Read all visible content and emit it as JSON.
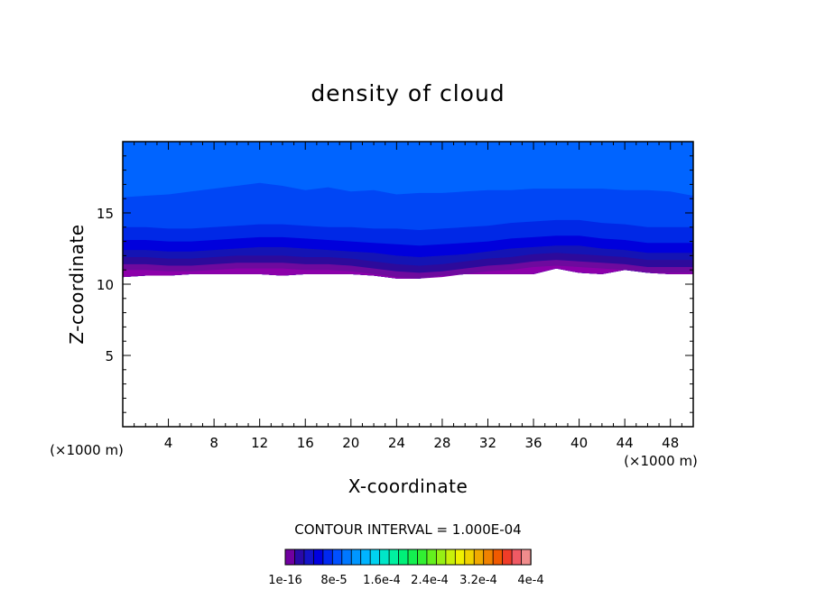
{
  "chart_data": {
    "type": "contour",
    "title": "density of cloud",
    "xlabel": "X-coordinate",
    "ylabel": "Z-coordinate",
    "x_unit": "(×1000 m)",
    "y_unit": "(×1000 m)",
    "xlim": [
      0,
      50
    ],
    "ylim": [
      0,
      20
    ],
    "x_ticks": [
      4,
      8,
      12,
      16,
      20,
      24,
      28,
      32,
      36,
      40,
      44,
      48
    ],
    "y_ticks": [
      5,
      10,
      15
    ],
    "contour_interval": "CONTOUR INTERVAL = 1.000E-04",
    "colorbar_labels": [
      "1e-16",
      "8e-5",
      "1.6e-4",
      "2.4e-4",
      "3.2e-4",
      "4e-4"
    ],
    "colorbar_colors": [
      "#7000a0",
      "#2a0aa8",
      "#1414c8",
      "#0000e0",
      "#0028f0",
      "#0050ff",
      "#0078ff",
      "#0096ff",
      "#00b4ff",
      "#00d2f0",
      "#00e6c8",
      "#00f0a0",
      "#00f078",
      "#14f050",
      "#32f032",
      "#64f01e",
      "#96f014",
      "#c8f00a",
      "#f0f000",
      "#f0d200",
      "#f0aa00",
      "#f08200",
      "#f05a00",
      "#f03c28",
      "#f05a64",
      "#f08c8c"
    ],
    "bands": [
      {
        "color": "#0064ff",
        "top": [
          20,
          20,
          20,
          20,
          20,
          20,
          20,
          20,
          20,
          20,
          20,
          20,
          20,
          20,
          20,
          20,
          20,
          20,
          20,
          20,
          20,
          20,
          20,
          20,
          20,
          20
        ]
      },
      {
        "color": "#0046f5",
        "top": [
          16.1,
          16.2,
          16.3,
          16.5,
          16.7,
          16.9,
          17.1,
          16.9,
          16.6,
          16.8,
          16.5,
          16.6,
          16.3,
          16.4,
          16.4,
          16.5,
          16.6,
          16.6,
          16.7,
          16.7,
          16.7,
          16.7,
          16.6,
          16.6,
          16.5,
          16.2
        ]
      },
      {
        "color": "#0028e6",
        "top": [
          14.0,
          14.0,
          13.9,
          13.9,
          14.0,
          14.1,
          14.2,
          14.2,
          14.1,
          14.0,
          14.0,
          13.9,
          13.9,
          13.8,
          13.9,
          14.0,
          14.1,
          14.3,
          14.4,
          14.5,
          14.5,
          14.3,
          14.2,
          14.0,
          14.0,
          14.0
        ]
      },
      {
        "color": "#0000dc",
        "top": [
          13.1,
          13.1,
          13.0,
          13.0,
          13.1,
          13.2,
          13.3,
          13.3,
          13.2,
          13.1,
          13.0,
          12.9,
          12.8,
          12.7,
          12.8,
          12.9,
          13.0,
          13.2,
          13.3,
          13.4,
          13.4,
          13.2,
          13.1,
          12.9,
          12.9,
          12.9
        ]
      },
      {
        "color": "#1414b4",
        "top": [
          12.4,
          12.4,
          12.3,
          12.3,
          12.4,
          12.5,
          12.6,
          12.6,
          12.5,
          12.4,
          12.3,
          12.2,
          12.0,
          11.9,
          12.0,
          12.1,
          12.3,
          12.5,
          12.6,
          12.7,
          12.7,
          12.5,
          12.4,
          12.2,
          12.2,
          12.2
        ]
      },
      {
        "color": "#2d0a9b",
        "top": [
          11.9,
          11.9,
          11.8,
          11.8,
          11.9,
          12.0,
          12.0,
          12.0,
          11.9,
          11.9,
          11.8,
          11.6,
          11.4,
          11.3,
          11.4,
          11.6,
          11.8,
          11.9,
          12.1,
          12.2,
          12.1,
          12.0,
          11.9,
          11.7,
          11.7,
          11.7
        ]
      },
      {
        "color": "#6e0a9e",
        "top": [
          11.4,
          11.4,
          11.3,
          11.3,
          11.4,
          11.5,
          11.5,
          11.5,
          11.4,
          11.4,
          11.3,
          11.1,
          10.9,
          10.8,
          10.9,
          11.1,
          11.3,
          11.4,
          11.6,
          11.7,
          11.6,
          11.5,
          11.4,
          11.2,
          11.2,
          11.2
        ]
      },
      {
        "color": "#8c00aa",
        "top": [
          11.0,
          11.0,
          10.9,
          10.9,
          11.0,
          11.1,
          11.1,
          11.1,
          11.0,
          11.0,
          10.9,
          10.7,
          10.5,
          10.4,
          10.5,
          10.7,
          10.9,
          11.0,
          11.2,
          11.3,
          11.2,
          11.1,
          11.0,
          10.8,
          10.8,
          10.8
        ]
      }
    ],
    "lower_boundary": [
      10.5,
      10.6,
      10.6,
      10.7,
      10.7,
      10.7,
      10.7,
      10.6,
      10.7,
      10.7,
      10.7,
      10.6,
      10.4,
      10.4,
      10.6,
      10.7,
      10.7,
      10.7,
      10.7,
      11.1,
      10.8,
      10.7,
      11.0,
      10.8,
      10.7,
      10.7
    ]
  }
}
